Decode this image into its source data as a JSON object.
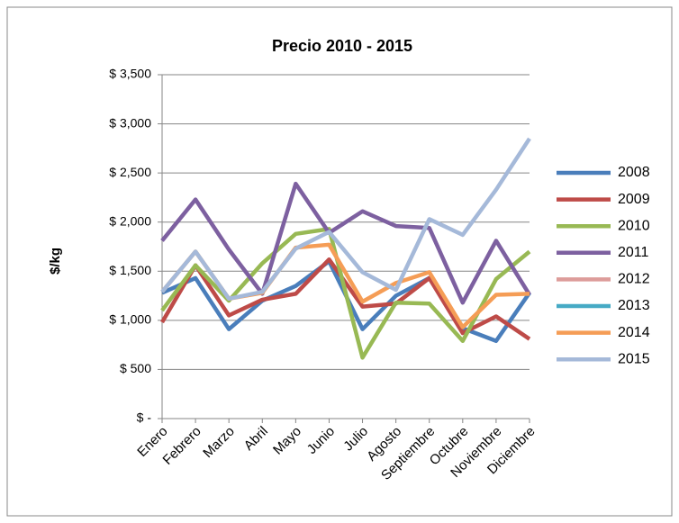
{
  "chart_data": {
    "type": "line",
    "title": "Precio 2010 - 2015",
    "y_label": "$/kg",
    "categories": [
      "Enero",
      "Febrero",
      "Marzo",
      "Abril",
      "Mayo",
      "Junio",
      "Julio",
      "Agosto",
      "Septiembre",
      "Octubre",
      "Noviembre",
      "Diciembre"
    ],
    "series": [
      {
        "name": "2008",
        "color": "#4a7ebb",
        "values": [
          1280,
          1430,
          910,
          1200,
          1350,
          1600,
          910,
          1250,
          1430,
          920,
          790,
          1280
        ]
      },
      {
        "name": "2009",
        "color": "#be4b48",
        "values": [
          980,
          1560,
          1050,
          1210,
          1270,
          1620,
          1140,
          1170,
          1430,
          870,
          1040,
          810
        ]
      },
      {
        "name": "2010",
        "color": "#98b954",
        "values": [
          1100,
          1560,
          1200,
          1580,
          1880,
          1930,
          620,
          1180,
          1170,
          790,
          1420,
          1700
        ]
      },
      {
        "name": "2011",
        "color": "#7d60a0",
        "values": [
          1810,
          2230,
          1720,
          1270,
          2390,
          1890,
          2110,
          1960,
          1940,
          1180,
          1810,
          1260
        ]
      },
      {
        "name": "2012",
        "color": "#dd9c9a",
        "values": [
          null,
          null,
          null,
          null,
          null,
          null,
          null,
          null,
          null,
          null,
          null,
          null
        ]
      },
      {
        "name": "2013",
        "color": "#46aac5",
        "values": [
          null,
          null,
          null,
          null,
          null,
          null,
          null,
          null,
          null,
          null,
          null,
          null
        ]
      },
      {
        "name": "2014",
        "color": "#f59d56",
        "values": [
          1290,
          1700,
          1220,
          1280,
          1740,
          1770,
          1190,
          1380,
          1490,
          930,
          1260,
          1270
        ]
      },
      {
        "name": "2015",
        "color": "#a5b9d9",
        "values": [
          1290,
          1700,
          1220,
          1290,
          1730,
          1900,
          1490,
          1310,
          2030,
          1870,
          2330,
          2850
        ]
      }
    ],
    "ylim": [
      0,
      3500
    ],
    "yticks": [
      {
        "value": 0,
        "label": "$ -"
      },
      {
        "value": 500,
        "label": "$ 500"
      },
      {
        "value": 1000,
        "label": "$ 1,000"
      },
      {
        "value": 1500,
        "label": "$ 1,500"
      },
      {
        "value": 2000,
        "label": "$ 2,000"
      },
      {
        "value": 2500,
        "label": "$ 2,500"
      },
      {
        "value": 3000,
        "label": "$ 3,000"
      },
      {
        "value": 3500,
        "label": "$ 3,500"
      }
    ],
    "grid": true,
    "legend": "right"
  }
}
